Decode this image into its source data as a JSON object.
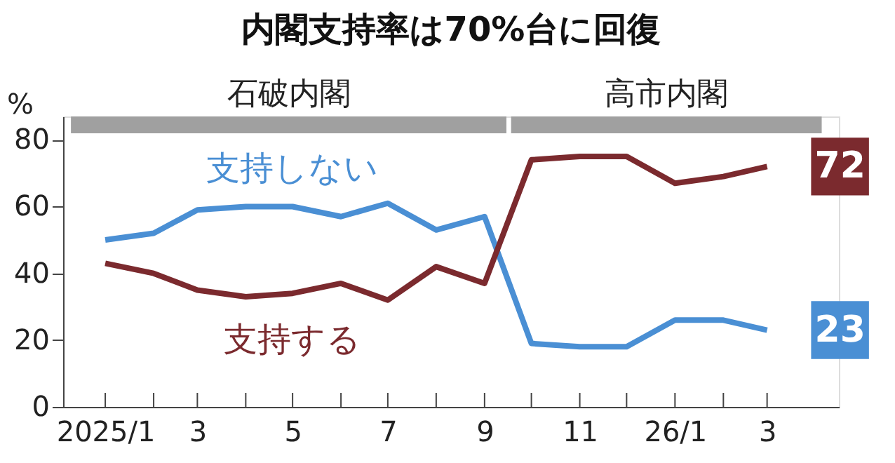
{
  "chart_data": {
    "type": "line",
    "title": "内閣支持率は70%台に回復",
    "ylabel": "%",
    "x": [
      "2025-01",
      "2025-02",
      "2025-03",
      "2025-04",
      "2025-05",
      "2025-06",
      "2025-07",
      "2025-08",
      "2025-09",
      "2025-10",
      "2025-11",
      "2025-12",
      "2026-01",
      "2026-02",
      "2026-03"
    ],
    "series": [
      {
        "name": "支持しない",
        "color": "#4a8fd4",
        "values": [
          50,
          52,
          59,
          60,
          60,
          57,
          61,
          53,
          57,
          19,
          18,
          18,
          26,
          26,
          23
        ],
        "value_labels": [
          null,
          null,
          null,
          null,
          null,
          null,
          null,
          null,
          null,
          null,
          null,
          null,
          null,
          null,
          "23"
        ]
      },
      {
        "name": "支持する",
        "color": "#7b2a2e",
        "values": [
          43,
          40,
          35,
          33,
          34,
          37,
          32,
          42,
          37,
          74,
          75,
          75,
          67,
          69,
          72
        ],
        "value_labels": [
          null,
          null,
          null,
          null,
          null,
          null,
          null,
          null,
          null,
          null,
          null,
          null,
          null,
          null,
          "72"
        ]
      }
    ],
    "xlim": [
      "2024-12-05",
      "2026-04-16"
    ],
    "xticks": [
      {
        "value": "2025-01",
        "label": "2025/1"
      },
      {
        "value": "2025-02",
        "label": null
      },
      {
        "value": "2025-03",
        "label": "3"
      },
      {
        "value": "2025-04",
        "label": null
      },
      {
        "value": "2025-05",
        "label": "5"
      },
      {
        "value": "2025-06",
        "label": null
      },
      {
        "value": "2025-07",
        "label": "7"
      },
      {
        "value": "2025-08",
        "label": null
      },
      {
        "value": "2025-09",
        "label": "9"
      },
      {
        "value": "2025-10",
        "label": null
      },
      {
        "value": "2025-11",
        "label": "11"
      },
      {
        "value": "2025-12",
        "label": null
      },
      {
        "value": "2026-01",
        "label": "26/1"
      },
      {
        "value": "2026-02",
        "label": null
      },
      {
        "value": "2026-03",
        "label": "3"
      }
    ],
    "ylim": [
      0,
      87
    ],
    "yticks": [
      0,
      20,
      40,
      60,
      80
    ],
    "bands": [
      {
        "axis": "x",
        "from": "2024-12-10",
        "to": "2025-09-15",
        "label": "石破内閣",
        "color": "#a0a0a0"
      },
      {
        "axis": "x",
        "from": "2025-09-18",
        "to": "2026-04-05",
        "label": "高市内閣",
        "color": "#a0a0a0"
      }
    ],
    "grid": false,
    "legend": false,
    "marker": "none",
    "line_style": "solid"
  }
}
